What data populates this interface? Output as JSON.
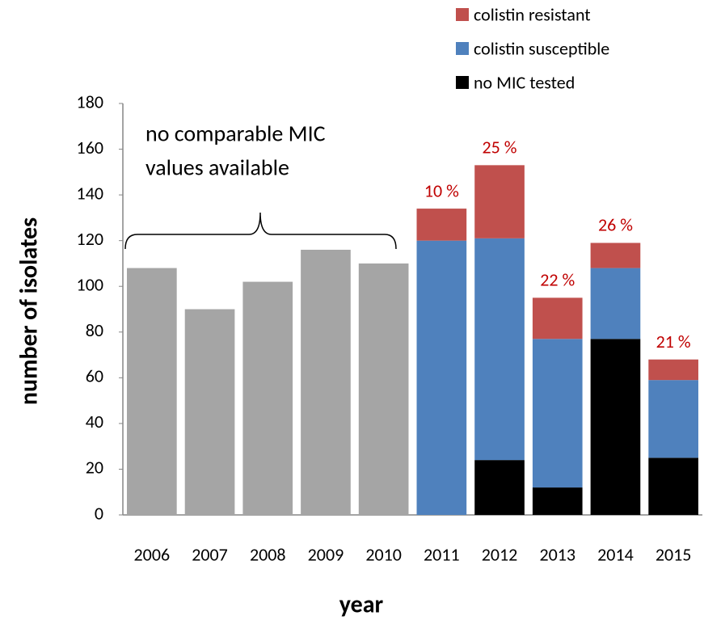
{
  "chart_data": {
    "type": "stacked_bar",
    "x_label": "year",
    "y_label": "number of isolates",
    "categories": [
      "2006",
      "2007",
      "2008",
      "2009",
      "2010",
      "2011",
      "2012",
      "2013",
      "2014",
      "2015"
    ],
    "series": [
      {
        "color": "#a5a5a5",
        "values": [
          108,
          90,
          102,
          116,
          110,
          null,
          null,
          null,
          null,
          null
        ]
      },
      {
        "name": "no MIC tested",
        "color": "#000000",
        "values": [
          null,
          null,
          null,
          null,
          null,
          null,
          24,
          12,
          77,
          25
        ]
      },
      {
        "name": "colistin susceptible",
        "color": "#4f81bd",
        "values": [
          null,
          null,
          null,
          null,
          null,
          120,
          97,
          65,
          31,
          34
        ]
      },
      {
        "name": "colistin resistant",
        "color": "#c0504d",
        "values": [
          null,
          null,
          null,
          null,
          null,
          14,
          32,
          18,
          11,
          9
        ]
      }
    ],
    "resistance_labels": [
      null,
      null,
      null,
      null,
      null,
      "10 %",
      "25 %",
      "22 %",
      "26 %",
      "21 %"
    ],
    "bracket_label": [
      "no comparable MIC",
      "values available"
    ],
    "ylim": [
      0,
      180
    ],
    "yticks": [
      0,
      20,
      40,
      60,
      80,
      100,
      120,
      140,
      160,
      180
    ]
  }
}
